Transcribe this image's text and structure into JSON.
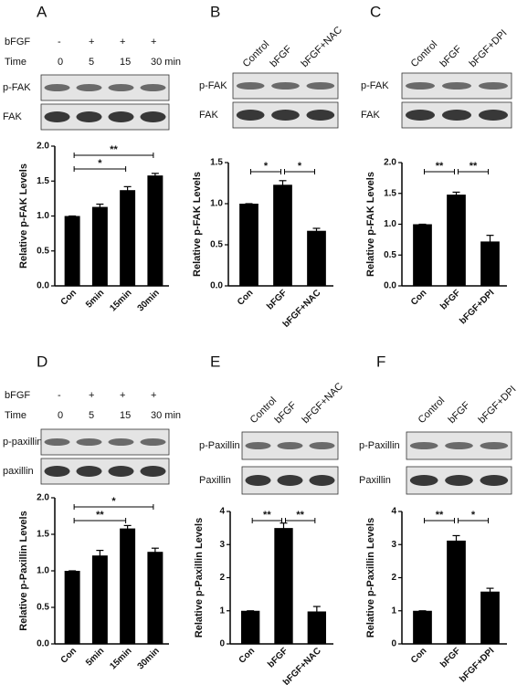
{
  "chart_data": [
    {
      "type": "bar",
      "panel_label": "A",
      "rows": [
        {
          "name": "bFGF",
          "lanes": [
            "-",
            "+",
            "+",
            "+"
          ]
        },
        {
          "name": "Time",
          "lanes": [
            "0",
            "5",
            "15",
            "30 min"
          ]
        }
      ],
      "blots": [
        "p-FAK",
        "FAK"
      ],
      "y_label": "Relative p-FAK Levels",
      "categories": [
        "Con",
        "5min",
        "15min",
        "30min"
      ],
      "values": [
        1.0,
        1.13,
        1.37,
        1.58
      ],
      "errors": [
        0,
        0.04,
        0.05,
        0.03
      ],
      "color": "#000000",
      "ylim": [
        0,
        2.0
      ],
      "yticks": [
        {
          "value": 0,
          "label": "0.0"
        },
        {
          "value": 0.5,
          "label": "0.5"
        },
        {
          "value": 1.0,
          "label": "1.0"
        },
        {
          "value": 1.5,
          "label": "1.5"
        },
        {
          "value": 2.0,
          "label": "2.0"
        }
      ],
      "significance": [
        {
          "from": 0,
          "to": 2,
          "label": "*"
        },
        {
          "from": 0,
          "to": 3,
          "label": "**"
        }
      ]
    },
    {
      "type": "bar",
      "panel_label": "B",
      "lanes": [
        "Control",
        "bFGF",
        "bFGF+NAC"
      ],
      "blots": [
        "p-FAK",
        "FAK"
      ],
      "y_label": "Relative p-FAK Levels",
      "categories": [
        "Con",
        "bFGF",
        "bFGF+NAC"
      ],
      "values": [
        1.0,
        1.23,
        0.67
      ],
      "errors": [
        0,
        0.05,
        0.03
      ],
      "color": "#000000",
      "ylim": [
        0,
        1.5
      ],
      "yticks": [
        {
          "value": 0,
          "label": "0.0"
        },
        {
          "value": 0.5,
          "label": "0.5"
        },
        {
          "value": 1.0,
          "label": "1.0"
        },
        {
          "value": 1.5,
          "label": "1.5"
        }
      ],
      "significance": [
        {
          "from": 0,
          "to": 1,
          "label": "*"
        },
        {
          "from": 1,
          "to": 2,
          "label": "*"
        }
      ]
    },
    {
      "type": "bar",
      "panel_label": "C",
      "lanes": [
        "Control",
        "bFGF",
        "bFGF+DPI"
      ],
      "blots": [
        "p-FAK",
        "FAK"
      ],
      "y_label": "Relative p-FAK Levels",
      "categories": [
        "Con",
        "bFGF",
        "bFGF+DPI"
      ],
      "values": [
        1.0,
        1.48,
        0.72
      ],
      "errors": [
        0,
        0.04,
        0.1
      ],
      "color": "#000000",
      "ylim": [
        0,
        2.0
      ],
      "yticks": [
        {
          "value": 0,
          "label": "0.0"
        },
        {
          "value": 0.5,
          "label": "0.5"
        },
        {
          "value": 1.0,
          "label": "1.0"
        },
        {
          "value": 1.5,
          "label": "1.5"
        },
        {
          "value": 2.0,
          "label": "2.0"
        }
      ],
      "significance": [
        {
          "from": 0,
          "to": 1,
          "label": "**"
        },
        {
          "from": 1,
          "to": 2,
          "label": "**"
        }
      ]
    },
    {
      "type": "bar",
      "panel_label": "D",
      "rows": [
        {
          "name": "bFGF",
          "lanes": [
            "-",
            "+",
            "+",
            "+"
          ]
        },
        {
          "name": "Time",
          "lanes": [
            "0",
            "5",
            "15",
            "30 min"
          ]
        }
      ],
      "blots": [
        "p-paxillin",
        "paxillin"
      ],
      "y_label": "Relative p-Paxillin Levels",
      "categories": [
        "Con",
        "5min",
        "15min",
        "30min"
      ],
      "values": [
        1.0,
        1.21,
        1.58,
        1.26
      ],
      "errors": [
        0,
        0.07,
        0.04,
        0.05
      ],
      "color": "#000000",
      "ylim": [
        0,
        2.0
      ],
      "yticks": [
        {
          "value": 0,
          "label": "0.0"
        },
        {
          "value": 0.5,
          "label": "0.5"
        },
        {
          "value": 1.0,
          "label": "1.0"
        },
        {
          "value": 1.5,
          "label": "1.5"
        },
        {
          "value": 2.0,
          "label": "2.0"
        }
      ],
      "significance": [
        {
          "from": 0,
          "to": 2,
          "label": "**"
        },
        {
          "from": 0,
          "to": 3,
          "label": "*"
        }
      ]
    },
    {
      "type": "bar",
      "panel_label": "E",
      "lanes": [
        "Control",
        "bFGF",
        "bFGF+NAC"
      ],
      "blots": [
        "p-Paxillin",
        "Paxillin"
      ],
      "y_label": "Relative p-Paxillin Levels",
      "categories": [
        "Con",
        "bFGF",
        "bFGF+NAC"
      ],
      "values": [
        1.0,
        3.5,
        0.98
      ],
      "errors": [
        0,
        0.15,
        0.15
      ],
      "color": "#000000",
      "ylim": [
        0,
        4
      ],
      "yticks": [
        0,
        1,
        2,
        3,
        4
      ],
      "significance": [
        {
          "from": 0,
          "to": 1,
          "label": "**"
        },
        {
          "from": 1,
          "to": 2,
          "label": "**"
        }
      ]
    },
    {
      "type": "bar",
      "panel_label": "F",
      "lanes": [
        "Control",
        "bFGF",
        "bFGF+DPI"
      ],
      "blots": [
        "p-Paxillin",
        "Paxillin"
      ],
      "y_label": "Relative p-Paxillin Levels",
      "categories": [
        "Con",
        "bFGF",
        "bFGF+DPI"
      ],
      "values": [
        1.0,
        3.12,
        1.58
      ],
      "errors": [
        0,
        0.15,
        0.1
      ],
      "color": "#000000",
      "ylim": [
        0,
        4
      ],
      "yticks": [
        0,
        1,
        2,
        3,
        4
      ],
      "significance": [
        {
          "from": 0,
          "to": 1,
          "label": "**"
        },
        {
          "from": 1,
          "to": 2,
          "label": "*"
        }
      ]
    }
  ]
}
